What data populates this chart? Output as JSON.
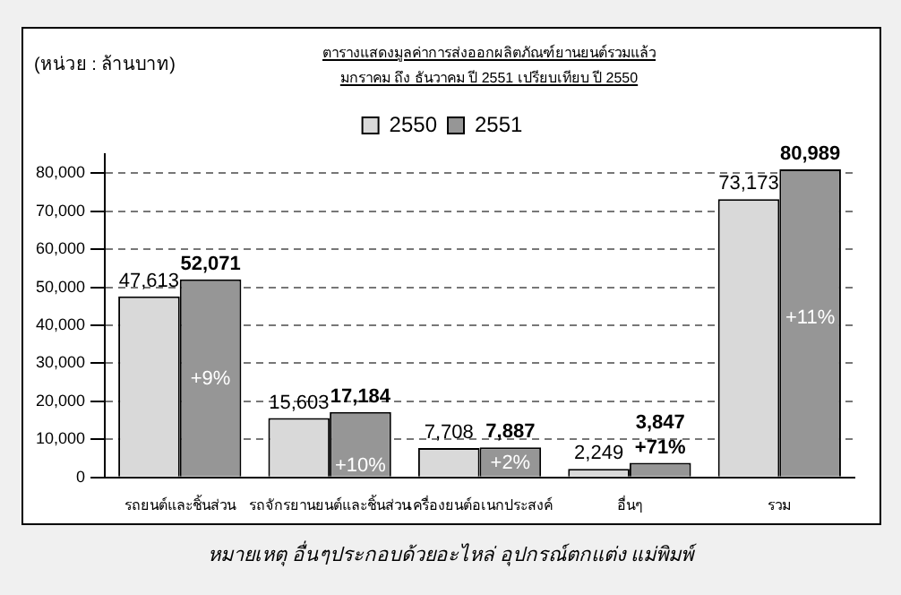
{
  "chart_data": {
    "type": "bar",
    "title": "ตารางแสดงมูลค่าการส่งออกผลิตภัณฑ์ยานยนต์รวมแล้ว",
    "subtitle": "มกราคม ถึง ธันวาคม ปี 2551 เปรียบเทียบ ปี 2550",
    "ylabel": "(หน่วย : ล้านบาท)",
    "categories": [
      "รถยนต์และชิ้นส่วน",
      "รถจักรยานยนต์และชิ้นส่วน",
      "เครื่องยนต์อเนกประสงค์",
      "อื่นๆ",
      "รวม"
    ],
    "series": [
      {
        "name": "2550",
        "color": "#d9d9d9",
        "values": [
          47613,
          15603,
          7708,
          2249,
          73173
        ],
        "value_labels": [
          "47,613",
          "15,603",
          "7,708",
          "2,249",
          "73,173"
        ]
      },
      {
        "name": "2551",
        "color": "#969696",
        "values": [
          52071,
          17184,
          7887,
          3847,
          80989
        ],
        "value_labels": [
          "52,071",
          "17,184",
          "7,887",
          "3,847",
          "80,989"
        ]
      }
    ],
    "ylim": [
      0,
      85000
    ],
    "yticks": [
      0,
      {
        "value": 10000,
        "label": "10,000"
      },
      {
        "value": 20000,
        "label": "20,000"
      },
      {
        "value": 30000,
        "label": "30,000"
      },
      {
        "value": 40000,
        "label": "40,000"
      },
      {
        "value": 50000,
        "label": "50,000"
      },
      {
        "value": 60000,
        "label": "60,000"
      },
      {
        "value": 70000,
        "label": "70,000"
      },
      {
        "value": 80000,
        "label": "80,000"
      }
    ],
    "grid": "y",
    "legend": "top",
    "annotations": [
      {
        "text": "+9%",
        "x": "รถยนต์และชิ้นส่วน",
        "y": 26000
      },
      {
        "text": "+10%",
        "x": "รถจักรยานยนต์และชิ้นส่วน",
        "y": 3000
      },
      {
        "text": "+2%",
        "x": "เครื่องยนต์อเนกประสงค์",
        "y": 3700
      },
      {
        "text": "+71%",
        "x": "อื่นๆ",
        "y": 3847
      },
      {
        "text": "+11%",
        "x": "รวม",
        "y": 42000
      },
      "หมายเหตุ  อื่นๆประกอบด้วยอะไหล่ อุปกรณ์ตกแต่ง แม่พิมพ์"
    ]
  }
}
